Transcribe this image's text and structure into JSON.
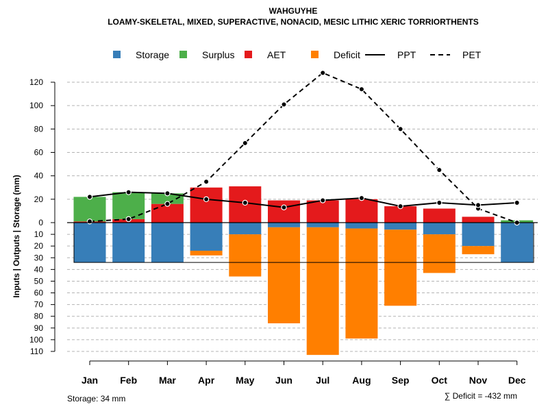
{
  "chart_data": {
    "type": "bar",
    "title": "WAHGUYHE",
    "subtitle": "LOAMY-SKELETAL, MIXED, SUPERACTIVE, NONACID, MESIC LITHIC XERIC TORRIORTHENTS",
    "ylabel": "Inputs | Outputs | Storage    (mm)",
    "categories": [
      "Jan",
      "Feb",
      "Mar",
      "Apr",
      "May",
      "Jun",
      "Jul",
      "Aug",
      "Sep",
      "Oct",
      "Nov",
      "Dec"
    ],
    "upper_ylim": [
      0,
      130
    ],
    "lower_ylim": [
      0,
      115
    ],
    "upper_ticks": [
      "0",
      "20",
      "40",
      "60",
      "80",
      "100",
      "120"
    ],
    "lower_ticks": [
      "10",
      "20",
      "30",
      "40",
      "50",
      "60",
      "70",
      "80",
      "90",
      "100",
      "110"
    ],
    "upper_tick_values": [
      0,
      20,
      40,
      60,
      80,
      100,
      120
    ],
    "lower_tick_values": [
      10,
      20,
      30,
      40,
      50,
      60,
      70,
      80,
      90,
      100,
      110
    ],
    "series": [
      {
        "name": "AET",
        "color": "#E41A1C",
        "values": [
          1,
          3,
          16,
          30,
          31,
          19,
          19,
          20,
          14,
          12,
          5,
          0
        ]
      },
      {
        "name": "Surplus",
        "color": "#4DAF4A",
        "values": [
          21,
          23,
          9,
          0,
          0,
          0,
          0,
          0,
          0,
          0,
          0,
          2
        ]
      },
      {
        "name": "Storage",
        "color": "#377EB8",
        "values": [
          34,
          34,
          34,
          24,
          10,
          4,
          4,
          5,
          6,
          10,
          20,
          34
        ]
      },
      {
        "name": "Deficit",
        "color": "#FF7F00",
        "values": [
          0,
          0,
          0,
          4,
          36,
          82,
          109,
          94,
          65,
          33,
          7,
          0
        ]
      },
      {
        "name": "PPT",
        "color": "#000000",
        "style": "solid",
        "values": [
          22,
          26,
          25,
          20,
          17,
          13,
          19,
          21,
          14,
          17,
          15,
          17
        ]
      },
      {
        "name": "PET",
        "color": "#000000",
        "style": "dashed",
        "values": [
          1,
          3,
          16,
          35,
          68,
          101,
          128,
          114,
          80,
          45,
          12,
          0
        ]
      }
    ],
    "storage_capacity": 34,
    "legend": [
      {
        "name": "Storage",
        "kind": "box",
        "color": "#377EB8"
      },
      {
        "name": "Surplus",
        "kind": "box",
        "color": "#4DAF4A"
      },
      {
        "name": "AET",
        "kind": "box",
        "color": "#E41A1C"
      },
      {
        "name": "Deficit",
        "kind": "box",
        "color": "#FF7F00"
      },
      {
        "name": "PPT",
        "kind": "solid"
      },
      {
        "name": "PET",
        "kind": "dashed"
      }
    ],
    "legend_position": "top",
    "grid": true,
    "footer_left": "Storage: 34 mm",
    "footer_right": "∑ Deficit = -432 mm"
  }
}
